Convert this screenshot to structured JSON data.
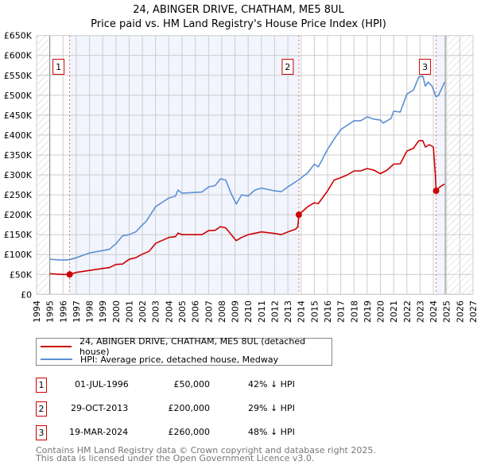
{
  "chart_data": {
    "type": "line",
    "title": "24, ABINGER DRIVE, CHATHAM, ME5 8UL",
    "subtitle": "Price paid vs. HM Land Registry's House Price Index (HPI)",
    "xlim": [
      1994,
      2027
    ],
    "ylim": [
      0,
      650000
    ],
    "x_ticks": [
      1994,
      1995,
      1996,
      1997,
      1998,
      1999,
      2000,
      2001,
      2002,
      2003,
      2004,
      2005,
      2006,
      2007,
      2008,
      2009,
      2010,
      2011,
      2012,
      2013,
      2014,
      2015,
      2016,
      2017,
      2018,
      2019,
      2020,
      2021,
      2022,
      2023,
      2024,
      2025,
      2026,
      2027
    ],
    "y_ticks": [
      0,
      50000,
      100000,
      150000,
      200000,
      250000,
      300000,
      350000,
      400000,
      450000,
      500000,
      550000,
      600000,
      650000
    ],
    "y_tick_labels": [
      "£0",
      "£50K",
      "£100K",
      "£150K",
      "£200K",
      "£250K",
      "£300K",
      "£350K",
      "£400K",
      "£450K",
      "£500K",
      "£550K",
      "£600K",
      "£650K"
    ],
    "grid": true,
    "data_start": 1995,
    "data_end": 2024.9,
    "series": [
      {
        "name": "24, ABINGER DRIVE, CHATHAM, ME5 8UL (detached house)",
        "color": "#cc0000",
        "x": [
          1995,
          1996,
          1996.5,
          1997,
          1998,
          1999,
          1999.5,
          2000,
          2000.5,
          2001,
          2001.5,
          2002,
          2002.5,
          2003,
          2004,
          2004.5,
          2004.7,
          2005,
          2006.5,
          2007,
          2007.5,
          2007.9,
          2008.3,
          2008.8,
          2009.1,
          2009.5,
          2010,
          2011,
          2012,
          2012.5,
          2013,
          2013.6,
          2013.75,
          2013.83,
          2014.5,
          2015,
          2015.3,
          2016,
          2016.5,
          2017,
          2017.5,
          2018,
          2018.5,
          2019,
          2019.5,
          2020,
          2020.5,
          2021,
          2021.5,
          2022,
          2022.5,
          2022.9,
          2023.2,
          2023.4,
          2023.7,
          2024.0,
          2024.15,
          2024.21,
          2024.5,
          2024.85
        ],
        "values": [
          52000,
          50000,
          50000,
          55000,
          60000,
          65000,
          67000,
          75000,
          76000,
          88000,
          92000,
          101000,
          108000,
          128000,
          143000,
          145000,
          154000,
          150000,
          150000,
          160000,
          161000,
          170000,
          167000,
          147000,
          135000,
          143000,
          150000,
          157000,
          153000,
          150000,
          157000,
          164000,
          170000,
          200000,
          220000,
          230000,
          228000,
          260000,
          287000,
          293000,
          300000,
          310000,
          310000,
          316000,
          312000,
          303000,
          312000,
          327000,
          328000,
          360000,
          367000,
          386000,
          386000,
          370000,
          376000,
          370000,
          300000,
          260000,
          270000,
          277000
        ]
      },
      {
        "name": "HPI: Average price, detached house, Medway",
        "color": "#5b8fd4",
        "x": [
          1995,
          1996,
          1996.5,
          1997,
          1998,
          1999,
          1999.5,
          2000,
          2000.5,
          2001,
          2001.5,
          2002,
          2002.3,
          2003,
          2004,
          2004.5,
          2004.7,
          2005,
          2006.5,
          2007,
          2007.5,
          2007.9,
          2008.3,
          2008.7,
          2009.1,
          2009.5,
          2010,
          2010.5,
          2011,
          2012,
          2012.5,
          2013,
          2013.8,
          2014.5,
          2015,
          2015.3,
          2016,
          2016.5,
          2017,
          2017.5,
          2018,
          2018.5,
          2019,
          2019.5,
          2020,
          2020.2,
          2020.8,
          2021,
          2021.5,
          2022,
          2022.5,
          2022.9,
          2023.2,
          2023.4,
          2023.6,
          2023.9,
          2024.2,
          2024.4,
          2024.85
        ],
        "values": [
          88000,
          86000,
          87000,
          92000,
          104000,
          110000,
          113000,
          127000,
          147000,
          150000,
          157000,
          174000,
          184000,
          220000,
          242000,
          247000,
          262000,
          254000,
          257000,
          270000,
          273000,
          290000,
          287000,
          254000,
          227000,
          250000,
          247000,
          262000,
          267000,
          260000,
          258000,
          270000,
          287000,
          305000,
          327000,
          320000,
          364000,
          390000,
          414000,
          425000,
          436000,
          436000,
          446000,
          440000,
          438000,
          430000,
          442000,
          460000,
          458000,
          503000,
          513000,
          546000,
          548000,
          523000,
          533000,
          523000,
          496000,
          500000,
          533000
        ]
      }
    ],
    "sales": [
      {
        "label": "1",
        "x": 1996.5,
        "value": 50000
      },
      {
        "label": "2",
        "x": 2013.83,
        "value": 200000
      },
      {
        "label": "3",
        "x": 2024.21,
        "value": 260000
      }
    ]
  },
  "legend": {
    "property": "24, ABINGER DRIVE, CHATHAM, ME5 8UL (detached house)",
    "hpi": "HPI: Average price, detached house, Medway"
  },
  "transactions": [
    {
      "num": "1",
      "date": "01-JUL-1996",
      "price": "£50,000",
      "hpi": "42% ↓ HPI"
    },
    {
      "num": "2",
      "date": "29-OCT-2013",
      "price": "£200,000",
      "hpi": "29% ↓ HPI"
    },
    {
      "num": "3",
      "date": "19-MAR-2024",
      "price": "£260,000",
      "hpi": "48% ↓ HPI"
    }
  ],
  "footer": {
    "line1": "Contains HM Land Registry data © Crown copyright and database right 2025.",
    "line2": "This data is licensed under the Open Government Licence v3.0."
  }
}
